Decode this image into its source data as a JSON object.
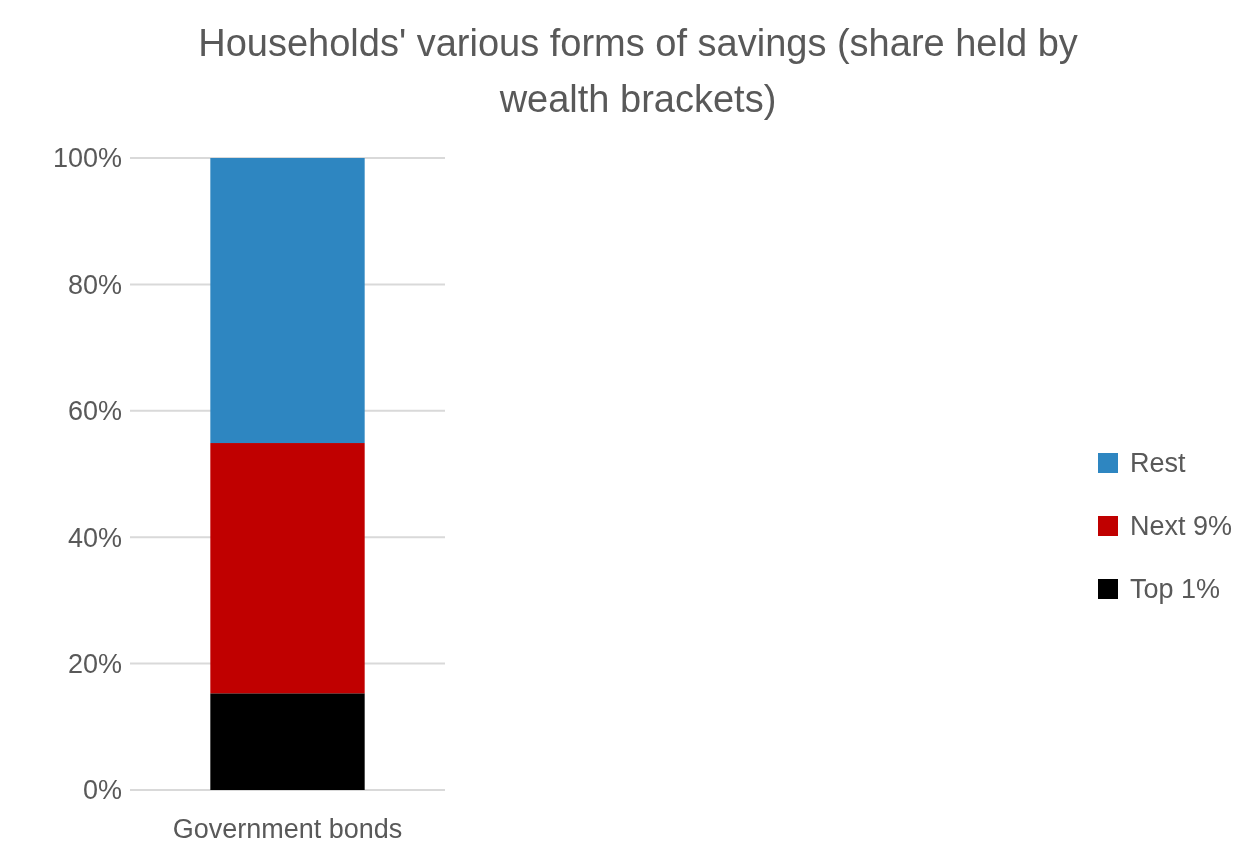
{
  "chart_data": {
    "type": "bar",
    "title": "Households' various forms of savings (share held by wealth brackets)",
    "categories": [
      "Government bonds"
    ],
    "stacked": true,
    "series": [
      {
        "name": "Top 1%",
        "color": "#000000",
        "values": [
          15.3
        ]
      },
      {
        "name": "Next 9%",
        "color": "#c00000",
        "values": [
          39.6
        ]
      },
      {
        "name": "Rest",
        "color": "#2e86c1",
        "values": [
          45.1
        ]
      }
    ],
    "ylim": [
      0,
      100
    ],
    "yticks": [
      {
        "value": 0,
        "label": "0%"
      },
      {
        "value": 20,
        "label": "20%"
      },
      {
        "value": 40,
        "label": "40%"
      },
      {
        "value": 60,
        "label": "60%"
      },
      {
        "value": 80,
        "label": "80%"
      },
      {
        "value": 100,
        "label": "100%"
      }
    ],
    "grid": "y",
    "legend": "right"
  }
}
